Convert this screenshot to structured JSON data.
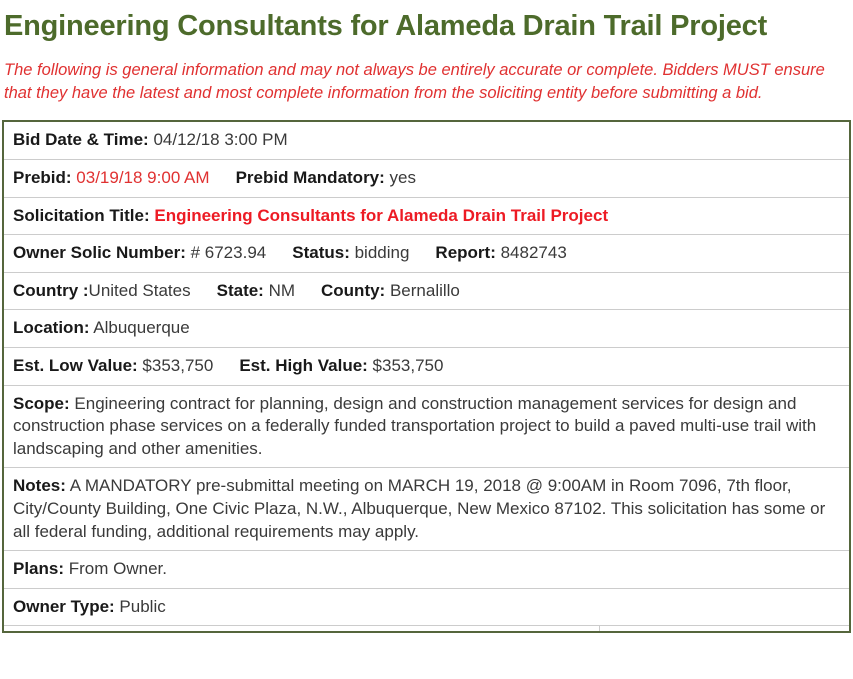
{
  "page": {
    "title": "Engineering Consultants for Alameda Drain Trail Project",
    "disclaimer": "The following is general information and may not always be entirely accurate or complete. Bidders MUST ensure that they have the latest and most complete information from the soliciting entity before submitting a bid."
  },
  "colors": {
    "heading_green": "#4d6b2b",
    "disclaimer_red": "#e03131",
    "value_red": "#e03131",
    "solicitation_title_red": "#ed1b24",
    "table_border": "#55663c",
    "row_divider": "#cccccc"
  },
  "bid_details": {
    "rows": [
      {
        "name": "bid-date-time",
        "pairs": [
          {
            "label": "Bid Date & Time:",
            "value": " 04/12/18 3:00 PM"
          }
        ]
      },
      {
        "name": "prebid",
        "pairs": [
          {
            "label": "Prebid:",
            "value": " 03/19/18 9:00 AM",
            "value_style": "red"
          },
          {
            "label": "Prebid Mandatory:",
            "value": " yes"
          }
        ]
      },
      {
        "name": "solicitation-title",
        "pairs": [
          {
            "label": "Solicitation Title:",
            "value": " Engineering Consultants for Alameda Drain Trail Project",
            "value_style": "red-bold"
          }
        ]
      },
      {
        "name": "owner-solic-number",
        "pairs": [
          {
            "label": "Owner Solic Number:",
            "value": " # 6723.94"
          },
          {
            "label": "Status:",
            "value": " bidding"
          },
          {
            "label": "Report:",
            "value": " 8482743"
          }
        ]
      },
      {
        "name": "country-state-county",
        "pairs": [
          {
            "label": "Country :",
            "value": "United States"
          },
          {
            "label": "State:",
            "value": " NM"
          },
          {
            "label": "County:",
            "value": " Bernalillo"
          }
        ]
      },
      {
        "name": "location",
        "pairs": [
          {
            "label": "Location:",
            "value": " Albuquerque"
          }
        ]
      },
      {
        "name": "estimated-values",
        "pairs": [
          {
            "label": "Est. Low Value:",
            "value": " $353,750"
          },
          {
            "label": "Est. High Value:",
            "value": " $353,750"
          }
        ]
      },
      {
        "name": "scope",
        "pairs": [
          {
            "label": "Scope:",
            "value": " Engineering contract for planning, design and construction management services for design and construction phase services on a federally funded transportation project to build a paved multi-use trail with landscaping and other amenities."
          }
        ]
      },
      {
        "name": "notes",
        "pairs": [
          {
            "label": "Notes:",
            "value": " A MANDATORY pre-submittal meeting on MARCH 19, 2018 @ 9:00AM in Room 7096, 7th floor, City/County Building, One Civic Plaza, N.W., Albuquerque, New Mexico 87102. This solicitation has some or all federal funding, additional requirements may apply."
          }
        ]
      },
      {
        "name": "plans",
        "pairs": [
          {
            "label": "Plans:",
            "value": " From Owner."
          }
        ]
      },
      {
        "name": "owner-type",
        "pairs": [
          {
            "label": "Owner Type:",
            "value": " Public"
          }
        ]
      }
    ]
  }
}
